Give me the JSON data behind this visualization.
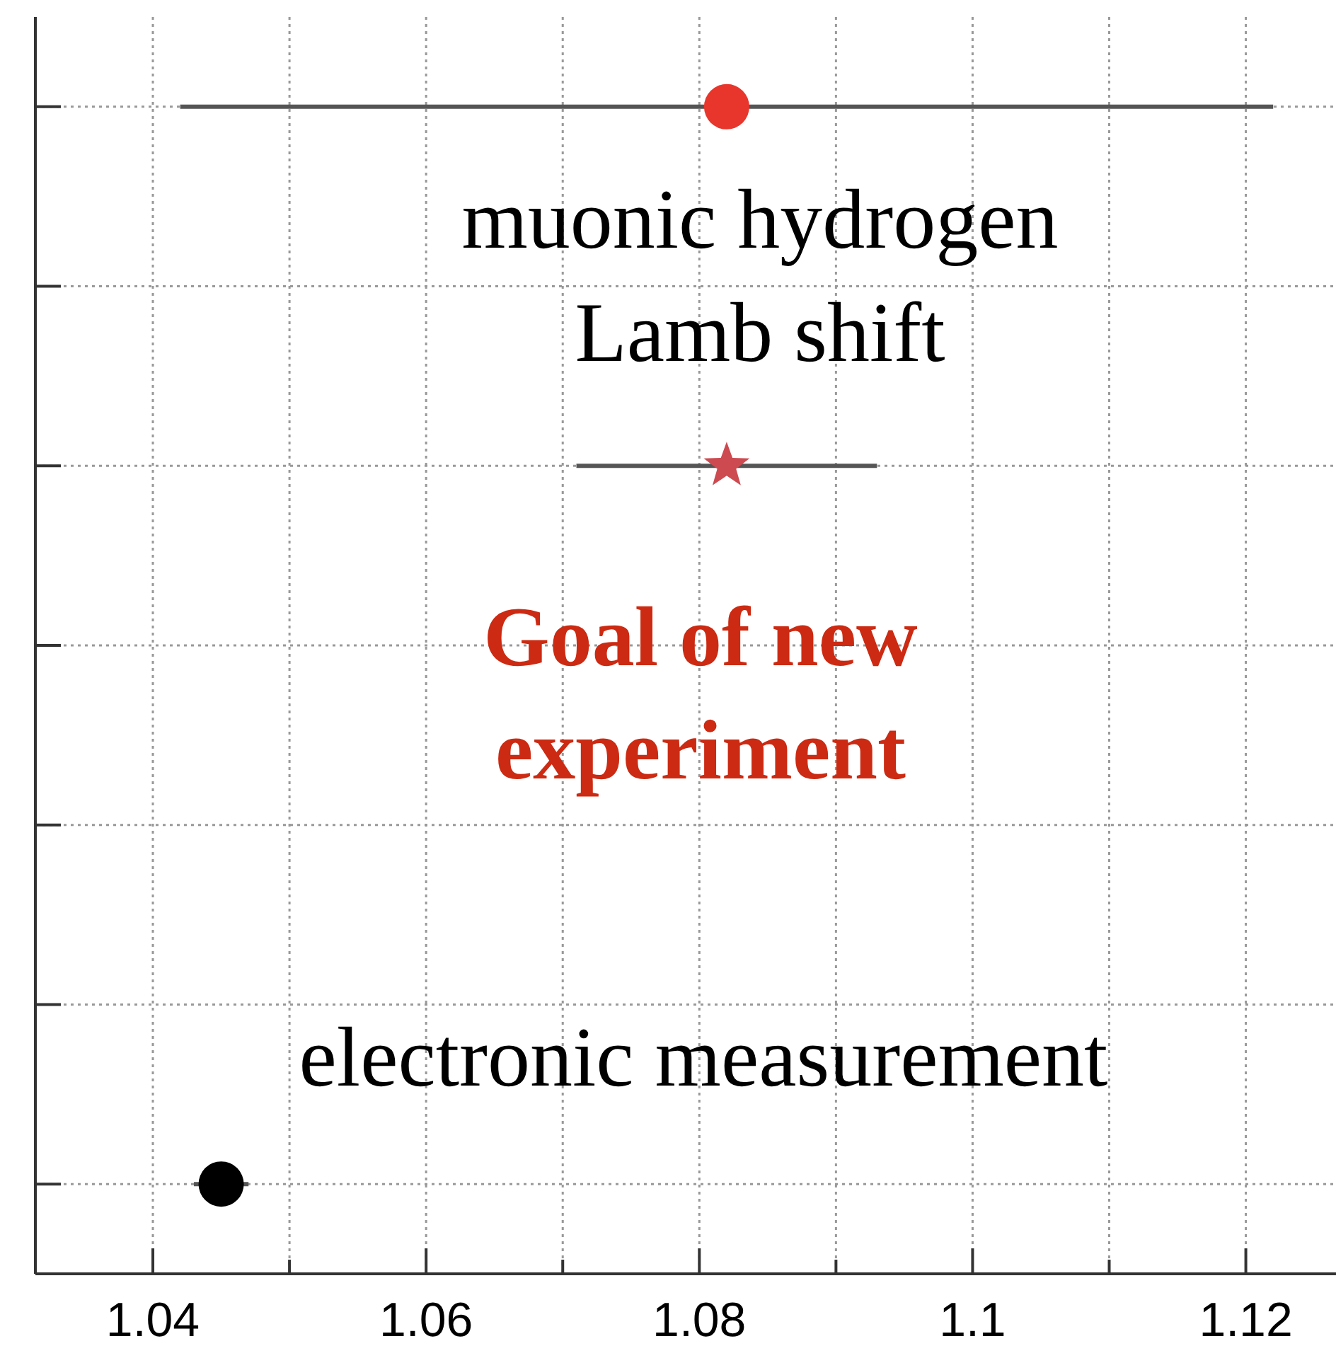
{
  "chart_data": {
    "type": "scatter",
    "orientation": "horizontal",
    "categories": [
      null,
      null,
      null,
      null,
      null,
      null,
      null
    ],
    "series": [
      {
        "color": "#e8362c",
        "marker": "circle",
        "values": [
          1.082,
          null,
          null,
          null,
          null,
          null,
          null
        ],
        "errors": [
          [
            1.042,
            1.122
          ],
          null,
          null,
          null,
          null,
          null,
          null
        ]
      },
      {
        "color": "#cc4a50",
        "marker": "star",
        "values": [
          null,
          null,
          1.082,
          null,
          null,
          null,
          null
        ],
        "errors": [
          null,
          null,
          [
            1.071,
            1.093
          ],
          null,
          null,
          null,
          null
        ]
      },
      {
        "color": "#000000",
        "marker": "circle",
        "values": [
          null,
          null,
          null,
          null,
          null,
          null,
          1.045
        ],
        "errors": [
          null,
          null,
          null,
          null,
          null,
          null,
          [
            1.043,
            1.047
          ]
        ]
      }
    ],
    "xlim": [
      1.0314,
      1.1266
    ],
    "xticks": [
      1.04,
      {
        "value": 1.05,
        "label": null
      },
      1.06,
      {
        "value": 1.07,
        "label": null
      },
      1.08,
      {
        "value": 1.09,
        "label": null
      },
      1.1,
      {
        "value": 1.11,
        "label": null
      },
      1.12
    ],
    "grid": true,
    "tick_labels": "x",
    "annotations": [
      "muonic hydrogen\nLamb shift",
      "Goal of new\nexperiment",
      "electronic measurement"
    ]
  }
}
